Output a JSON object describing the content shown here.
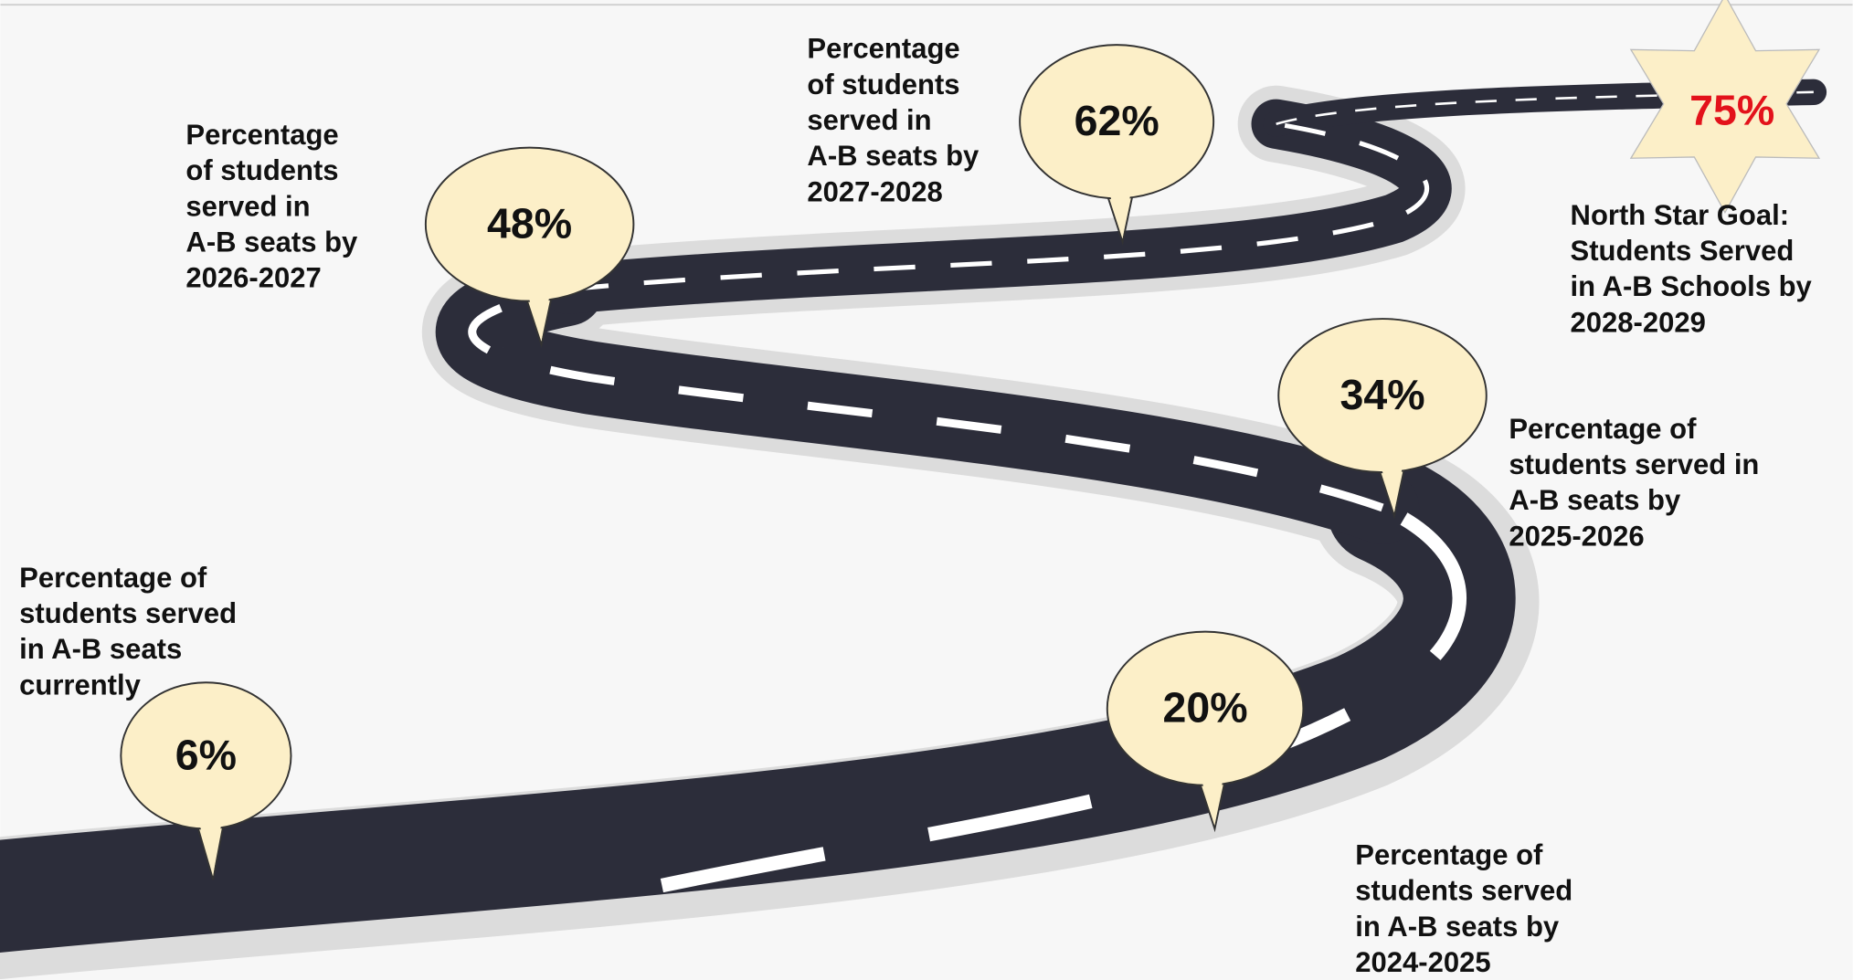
{
  "milestones": [
    {
      "value": "6%",
      "label": [
        "Percentage of",
        "students served",
        "in A-B seats",
        "currently"
      ]
    },
    {
      "value": "20%",
      "label": [
        "Percentage of",
        "students served",
        "in A-B seats by",
        "2024-2025"
      ]
    },
    {
      "value": "34%",
      "label": [
        "Percentage of",
        "students served in",
        "A-B seats by",
        "2025-2026"
      ]
    },
    {
      "value": "48%",
      "label": [
        "Percentage",
        "of students",
        "served in",
        "A-B seats by",
        "2026-2027"
      ]
    },
    {
      "value": "62%",
      "label": [
        "Percentage",
        "of students",
        "served in",
        "A-B seats by",
        "2027-2028"
      ]
    }
  ],
  "goal": {
    "value": "75%",
    "label": [
      "North Star Goal:",
      "Students Served",
      "in A-B Schools by",
      "2028-2029"
    ]
  }
}
